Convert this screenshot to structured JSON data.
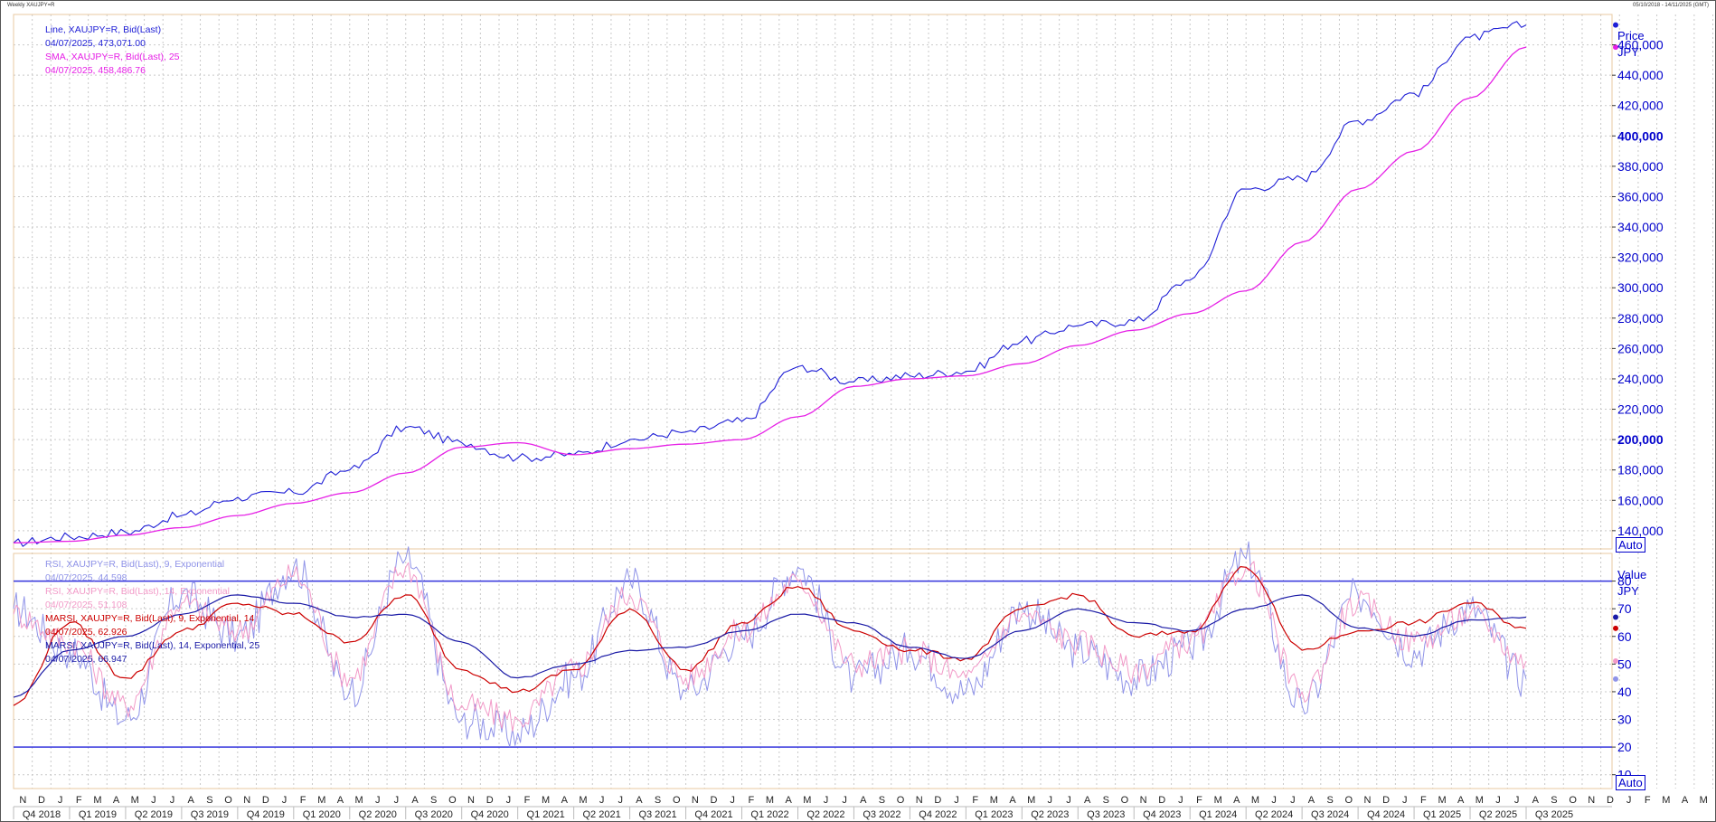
{
  "window": {
    "title": "Weekly XAUJPY=R",
    "date_range": "05/10/2018 - 14/11/2025 (GMT)"
  },
  "legend_price": [
    {
      "label": "Line, XAUJPY=R, Bid(Last)",
      "value": "04/07/2025, 473,071.00",
      "color": "#1f1fd6"
    },
    {
      "label": "SMA, XAUJPY=R, Bid(Last),  25",
      "value": "04/07/2025, 458,486.76",
      "color": "#e620e6"
    }
  ],
  "legend_osc": [
    {
      "label": "RSI, XAUJPY=R, Bid(Last),  9, Exponential",
      "value": "04/07/2025, 44.598",
      "color": "#8f93e8"
    },
    {
      "label": "RSI, XAUJPY=R, Bid(Last),  14, Exponential",
      "value": "04/07/2025, 51.108",
      "color": "#f29ac8"
    },
    {
      "label": "MARSI, XAUJPY=R, Bid(Last),  9, Exponential, 14",
      "value": "04/07/2025, 62.926",
      "color": "#cc0000"
    },
    {
      "label": "MARSI, XAUJPY=R, Bid(Last),  14, Exponential, 25",
      "value": "04/07/2025, 66.947",
      "color": "#1a1aa6"
    }
  ],
  "axis": {
    "price_title": "Price",
    "price_unit": "JPY",
    "value_title": "Value",
    "value_unit": "JPY",
    "auto_label": "Auto"
  },
  "chart_data": [
    {
      "type": "line",
      "ylim": [
        128000,
        480000
      ],
      "yticks": [
        140000,
        160000,
        180000,
        200000,
        220000,
        240000,
        260000,
        280000,
        300000,
        320000,
        340000,
        360000,
        380000,
        400000,
        420000,
        440000,
        460000
      ],
      "ytick_labels": [
        "140,000",
        "160,000",
        "180,000",
        "200,000",
        "220,000",
        "240,000",
        "260,000",
        "280,000",
        "300,000",
        "320,000",
        "340,000",
        "360,000",
        "380,000",
        "400,000",
        "420,000",
        "440,000",
        "460,000"
      ],
      "bold_ticks": [
        "200,000",
        "400,000"
      ],
      "x": [
        "2018-10",
        "2019-01",
        "2019-04",
        "2019-07",
        "2019-10",
        "2020-01",
        "2020-04",
        "2020-07",
        "2020-10",
        "2021-01",
        "2021-04",
        "2021-07",
        "2021-10",
        "2022-01",
        "2022-04",
        "2022-07",
        "2022-10",
        "2023-01",
        "2023-04",
        "2023-07",
        "2023-10",
        "2024-01",
        "2024-04",
        "2024-07",
        "2024-10",
        "2025-01",
        "2025-04",
        "2025-07"
      ],
      "series": [
        {
          "name": "Line, XAUJPY=R, Bid(Last)",
          "color": "#1f1fd6",
          "values": [
            132000,
            136000,
            139000,
            150000,
            162000,
            165000,
            180000,
            208000,
            198000,
            188000,
            190000,
            200000,
            205000,
            212000,
            248000,
            238000,
            242000,
            245000,
            265000,
            275000,
            278000,
            305000,
            365000,
            372000,
            410000,
            428000,
            465000,
            473071
          ]
        },
        {
          "name": "SMA, XAUJPY=R, Bid(Last),  25",
          "color": "#e620e6",
          "values": [
            132000,
            133000,
            137000,
            142000,
            150000,
            158000,
            165000,
            178000,
            195000,
            198000,
            190000,
            194000,
            197000,
            200000,
            215000,
            235000,
            240000,
            242000,
            250000,
            262000,
            272000,
            283000,
            298000,
            330000,
            365000,
            390000,
            425000,
            458487
          ]
        }
      ]
    },
    {
      "type": "line",
      "ylim": [
        5,
        90
      ],
      "yticks": [
        10,
        20,
        30,
        40,
        50,
        60,
        70,
        80
      ],
      "ytick_labels": [
        "10",
        "20",
        "30",
        "40",
        "50",
        "60",
        "70",
        "80"
      ],
      "hlines": [
        20,
        80
      ],
      "x": [
        "2018-10",
        "2019-01",
        "2019-04",
        "2019-07",
        "2019-10",
        "2020-01",
        "2020-04",
        "2020-07",
        "2020-10",
        "2021-01",
        "2021-04",
        "2021-07",
        "2021-10",
        "2022-01",
        "2022-04",
        "2022-07",
        "2022-10",
        "2023-01",
        "2023-04",
        "2023-07",
        "2023-10",
        "2024-01",
        "2024-04",
        "2024-07",
        "2024-10",
        "2025-01",
        "2025-04",
        "2025-07"
      ],
      "series": [
        {
          "name": "RSI, XAUJPY=R, Bid(Last),  9, Exponential",
          "color": "#8f93e8",
          "values": [
            70,
            55,
            30,
            75,
            60,
            85,
            40,
            88,
            30,
            25,
            45,
            80,
            40,
            60,
            85,
            45,
            55,
            40,
            70,
            55,
            45,
            55,
            88,
            35,
            75,
            55,
            70,
            44.598
          ]
        },
        {
          "name": "RSI, XAUJPY=R, Bid(Last),  14, Exponential",
          "color": "#f29ac8",
          "values": [
            68,
            58,
            35,
            72,
            62,
            82,
            45,
            85,
            35,
            30,
            48,
            75,
            45,
            62,
            80,
            50,
            55,
            45,
            68,
            58,
            48,
            58,
            85,
            40,
            72,
            58,
            68,
            51.108
          ]
        },
        {
          "name": "MARSI, XAUJPY=R, Bid(Last),  9, Exponential, 14",
          "color": "#cc0000",
          "values": [
            35,
            65,
            45,
            62,
            72,
            68,
            58,
            75,
            48,
            40,
            48,
            70,
            48,
            65,
            78,
            62,
            55,
            52,
            70,
            75,
            60,
            62,
            85,
            55,
            62,
            65,
            72,
            62.926
          ]
        },
        {
          "name": "MARSI, XAUJPY=R, Bid(Last),  14, Exponential, 25",
          "color": "#1a1aa6",
          "values": [
            38,
            55,
            60,
            68,
            75,
            72,
            67,
            68,
            58,
            45,
            50,
            55,
            56,
            62,
            68,
            65,
            56,
            52,
            62,
            70,
            65,
            62,
            70,
            75,
            63,
            60,
            66,
            66.947
          ]
        }
      ]
    }
  ],
  "x_axis": {
    "months": [
      "N",
      "D",
      "J",
      "F",
      "M",
      "A",
      "M",
      "J",
      "J",
      "A",
      "S",
      "O",
      "N",
      "D",
      "J",
      "F",
      "M",
      "A",
      "M",
      "J",
      "J",
      "A",
      "S",
      "O",
      "N",
      "D",
      "J",
      "F",
      "M",
      "A",
      "M",
      "J",
      "J",
      "A",
      "S",
      "O",
      "N",
      "D",
      "J",
      "F",
      "M",
      "A",
      "M",
      "J",
      "J",
      "A",
      "S",
      "O",
      "N",
      "D",
      "J",
      "F",
      "M",
      "A",
      "M",
      "J",
      "J",
      "A",
      "S",
      "O",
      "N",
      "D",
      "J",
      "F",
      "M",
      "A",
      "M",
      "J",
      "J",
      "A",
      "S",
      "O",
      "N",
      "D",
      "J",
      "F",
      "M",
      "A",
      "M",
      "J",
      "J",
      "A",
      "S",
      "O",
      "N",
      "D",
      "J",
      "F",
      "M",
      "A",
      "M",
      "J",
      "J",
      "A",
      "S",
      "O",
      "N"
    ],
    "quarters": [
      "Q4 2018",
      "Q1 2019",
      "Q2 2019",
      "Q3 2019",
      "Q4 2019",
      "Q1 2020",
      "Q2 2020",
      "Q3 2020",
      "Q4 2020",
      "Q1 2021",
      "Q2 2021",
      "Q3 2021",
      "Q4 2021",
      "Q1 2022",
      "Q2 2022",
      "Q3 2022",
      "Q4 2022",
      "Q1 2023",
      "Q2 2023",
      "Q3 2023",
      "Q4 2023",
      "Q1 2024",
      "Q2 2024",
      "Q3 2024",
      "Q4 2024",
      "Q1 2025",
      "Q2 2025",
      "Q3 2025"
    ]
  }
}
